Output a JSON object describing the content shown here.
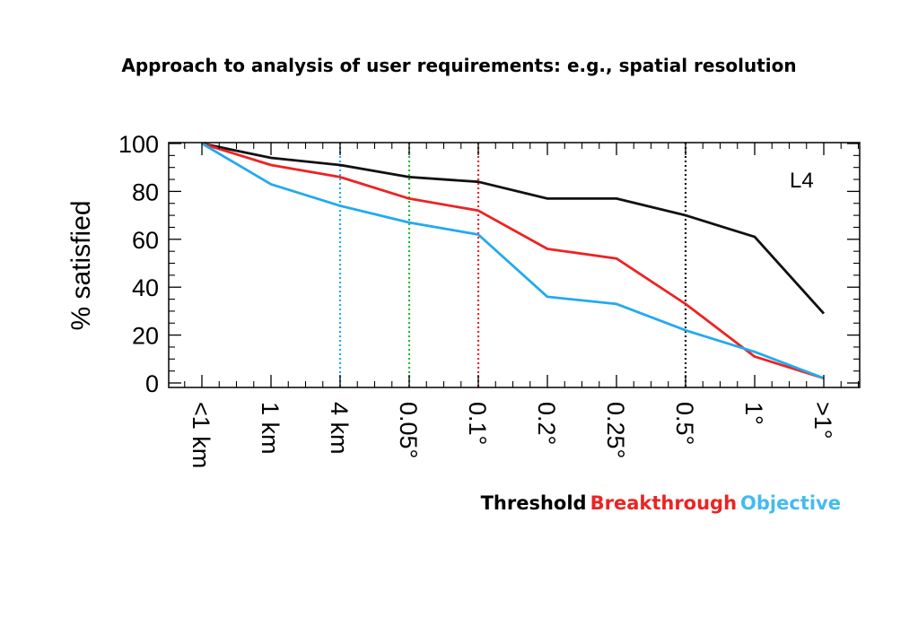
{
  "slide": {
    "title": "Approach to analysis of user requirements: e.g., spatial resolution"
  },
  "legend": {
    "items": [
      {
        "label": "Threshold",
        "color": "#000000"
      },
      {
        "label": "Breakthrough",
        "color": "#ee2222"
      },
      {
        "label": "Objective",
        "color": "#44bbee"
      }
    ]
  },
  "chart_data": {
    "type": "line",
    "title": "",
    "panel_label": "L4",
    "xlabel": "",
    "ylabel": "% satisfied",
    "ylim": [
      0,
      100
    ],
    "yticks": [
      0,
      20,
      40,
      60,
      80,
      100
    ],
    "categories": [
      "<1 km",
      "1 km",
      "4 km",
      "0.05°",
      "0.1°",
      "0.2°",
      "0.25°",
      "0.5°",
      "1°",
      ">1°"
    ],
    "series": [
      {
        "name": "Threshold",
        "color": "#111111",
        "values": [
          100,
          94,
          91,
          86,
          84,
          77,
          77,
          70,
          61,
          29
        ]
      },
      {
        "name": "Breakthrough",
        "color": "#ee2222",
        "values": [
          100,
          91,
          86,
          77,
          72,
          56,
          52,
          33,
          11,
          2
        ]
      },
      {
        "name": "Objective",
        "color": "#22aaee",
        "values": [
          100,
          83,
          74,
          67,
          62,
          36,
          33,
          22,
          13,
          2
        ]
      }
    ],
    "reference_lines": [
      {
        "category": "4 km",
        "color": "#22aaee",
        "style": "dotted"
      },
      {
        "category": "0.05°",
        "color": "#22bb33",
        "style": "dotted"
      },
      {
        "category": "0.1°",
        "color": "#ee2222",
        "style": "dotted"
      },
      {
        "category": "0.5°",
        "color": "#111111",
        "style": "dotted"
      }
    ],
    "grid": false
  }
}
